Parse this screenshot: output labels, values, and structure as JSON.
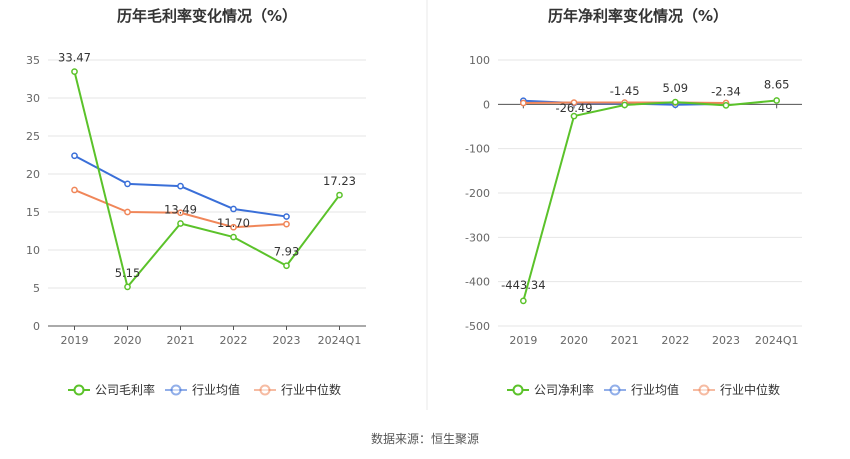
{
  "source": "数据来源：恒生聚源",
  "charts": [
    {
      "title": "历年毛利率变化情况（%）",
      "ylim": [
        0,
        35
      ],
      "yticks": [
        0,
        5,
        10,
        15,
        20,
        25,
        30,
        35
      ],
      "categories": [
        "2019",
        "2020",
        "2021",
        "2022",
        "2023",
        "2024Q1"
      ],
      "series": [
        {
          "name": "公司毛利率",
          "color": "#5bc22a",
          "values": [
            33.47,
            5.15,
            13.49,
            11.7,
            7.93,
            17.23
          ]
        },
        {
          "name": "行业均值",
          "color": "#3a6fd8",
          "values": [
            22.4,
            18.7,
            18.4,
            15.4,
            14.4,
            null
          ]
        },
        {
          "name": "行业中位数",
          "color": "#f08659",
          "values": [
            17.9,
            15.0,
            14.9,
            13.0,
            13.4,
            null
          ]
        }
      ],
      "data_labels": [
        "33.47",
        "5.15",
        "13.49",
        "11.70",
        "7.93",
        "17.23"
      ],
      "legend": [
        "公司毛利率",
        "行业均值",
        "行业中位数"
      ]
    },
    {
      "title": "历年净利率变化情况（%）",
      "ylim": [
        -500,
        100
      ],
      "yticks": [
        -500,
        -400,
        -300,
        -200,
        -100,
        0,
        100
      ],
      "categories": [
        "2019",
        "2020",
        "2021",
        "2022",
        "2023",
        "2024Q1"
      ],
      "series": [
        {
          "name": "公司净利率",
          "color": "#5bc22a",
          "values": [
            -443.34,
            -26.49,
            -1.45,
            5.09,
            -2.34,
            8.65
          ]
        },
        {
          "name": "行业均值",
          "color": "#3a6fd8",
          "values": [
            8.0,
            3.0,
            2.0,
            -1.0,
            1.0,
            null
          ]
        },
        {
          "name": "行业中位数",
          "color": "#f08659",
          "values": [
            3.0,
            4.0,
            4.0,
            4.0,
            3.0,
            null
          ]
        }
      ],
      "data_labels": [
        "-443.34",
        "-26.49",
        "-1.45",
        "5.09",
        "-2.34",
        "8.65"
      ],
      "legend": [
        "公司净利率",
        "行业均值",
        "行业中位数"
      ]
    }
  ],
  "chart_data": [
    {
      "type": "line",
      "title": "历年毛利率变化情况（%）",
      "categories": [
        "2019",
        "2020",
        "2021",
        "2022",
        "2023",
        "2024Q1"
      ],
      "ylim": [
        0,
        35
      ],
      "series": [
        {
          "name": "公司毛利率",
          "values": [
            33.47,
            5.15,
            13.49,
            11.7,
            7.93,
            17.23
          ]
        },
        {
          "name": "行业均值",
          "values": [
            22.4,
            18.7,
            18.4,
            15.4,
            14.4,
            null
          ]
        },
        {
          "name": "行业中位数",
          "values": [
            17.9,
            15.0,
            14.9,
            13.0,
            13.4,
            null
          ]
        }
      ]
    },
    {
      "type": "line",
      "title": "历年净利率变化情况（%）",
      "categories": [
        "2019",
        "2020",
        "2021",
        "2022",
        "2023",
        "2024Q1"
      ],
      "ylim": [
        -500,
        100
      ],
      "series": [
        {
          "name": "公司净利率",
          "values": [
            -443.34,
            -26.49,
            -1.45,
            5.09,
            -2.34,
            8.65
          ]
        },
        {
          "name": "行业均值",
          "values": [
            8.0,
            3.0,
            2.0,
            -1.0,
            1.0,
            null
          ]
        },
        {
          "name": "行业中位数",
          "values": [
            3.0,
            4.0,
            4.0,
            4.0,
            3.0,
            null
          ]
        }
      ]
    }
  ]
}
